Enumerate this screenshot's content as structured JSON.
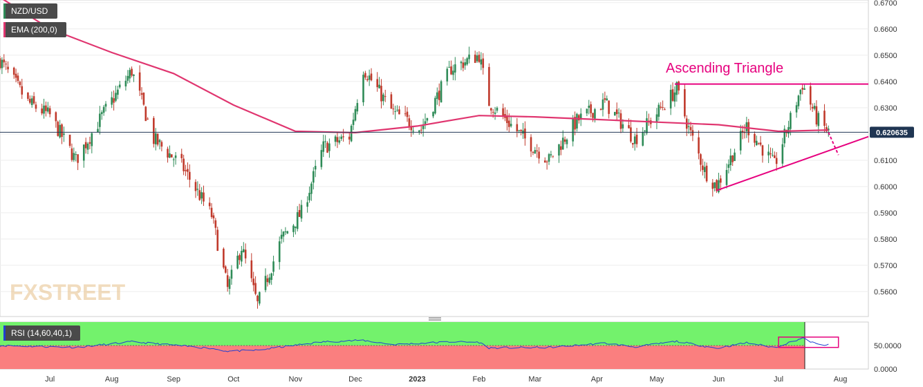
{
  "title": "NZD/USD",
  "legend": {
    "symbol": "NZD/USD",
    "ema": "EMA (200,0)",
    "rsi": "RSI (14,60,40,1)"
  },
  "annotation": "Ascending Triangle",
  "watermark": "FXSTREET",
  "current_price": "0.620635",
  "colors": {
    "up": "#2e8b57",
    "down": "#c0392b",
    "ema": "#e0356f",
    "pattern": "#e6007e",
    "rsi_line": "#1f3fd1",
    "rsi_upper_zone": "#73f26c",
    "rsi_lower_zone": "#fa7f7f",
    "price_label_bg": "#1f3552",
    "legend_bg": "#4a4a4a"
  },
  "chart_data": [
    {
      "type": "candlestick",
      "y_axis": {
        "ticks": [
          0.56,
          0.57,
          0.58,
          0.59,
          0.6,
          0.61,
          0.62,
          0.63,
          0.64,
          0.65,
          0.66,
          0.67
        ],
        "tick_labels": [
          "0.5600",
          "0.5700",
          "0.5800",
          "0.5900",
          "0.6000",
          "0.6100",
          "0.6200",
          "0.6300",
          "0.6400",
          "0.6500",
          "0.6600",
          "0.6700"
        ],
        "range": [
          0.5505,
          0.671
        ]
      },
      "x_axis": {
        "labels": [
          "Jul",
          "Aug",
          "Sep",
          "Oct",
          "Nov",
          "Dec",
          "2023",
          "Feb",
          "Mar",
          "Apr",
          "May",
          "Jun",
          "Jul",
          "Aug"
        ],
        "range": [
          "2022-06-06",
          "2023-08-15"
        ]
      },
      "price_path": [
        {
          "date": "2022-06-06",
          "close": 0.648
        },
        {
          "date": "2022-06-20",
          "close": 0.632
        },
        {
          "date": "2022-07-01",
          "close": 0.627
        },
        {
          "date": "2022-07-14",
          "close": 0.61
        },
        {
          "date": "2022-07-28",
          "close": 0.628
        },
        {
          "date": "2022-08-11",
          "close": 0.644
        },
        {
          "date": "2022-08-22",
          "close": 0.618
        },
        {
          "date": "2022-09-05",
          "close": 0.608
        },
        {
          "date": "2022-09-20",
          "close": 0.589
        },
        {
          "date": "2022-09-28",
          "close": 0.561
        },
        {
          "date": "2022-10-05",
          "close": 0.577
        },
        {
          "date": "2022-10-13",
          "close": 0.555
        },
        {
          "date": "2022-10-25",
          "close": 0.58
        },
        {
          "date": "2022-11-04",
          "close": 0.59
        },
        {
          "date": "2022-11-15",
          "close": 0.615
        },
        {
          "date": "2022-11-28",
          "close": 0.619
        },
        {
          "date": "2022-12-05",
          "close": 0.645
        },
        {
          "date": "2022-12-20",
          "close": 0.628
        },
        {
          "date": "2023-01-03",
          "close": 0.622
        },
        {
          "date": "2023-01-18",
          "close": 0.645
        },
        {
          "date": "2023-02-01",
          "close": 0.65
        },
        {
          "date": "2023-02-06",
          "close": 0.632
        },
        {
          "date": "2023-02-24",
          "close": 0.618
        },
        {
          "date": "2023-03-08",
          "close": 0.61
        },
        {
          "date": "2023-03-22",
          "close": 0.625
        },
        {
          "date": "2023-04-05",
          "close": 0.632
        },
        {
          "date": "2023-04-20",
          "close": 0.618
        },
        {
          "date": "2023-05-11",
          "close": 0.637
        },
        {
          "date": "2023-05-17",
          "close": 0.622
        },
        {
          "date": "2023-05-25",
          "close": 0.606
        },
        {
          "date": "2023-05-31",
          "close": 0.6
        },
        {
          "date": "2023-06-15",
          "close": 0.623
        },
        {
          "date": "2023-06-29",
          "close": 0.608
        },
        {
          "date": "2023-07-13",
          "close": 0.639
        },
        {
          "date": "2023-07-20",
          "close": 0.626
        },
        {
          "date": "2023-07-26",
          "close": 0.6206
        }
      ],
      "ema_200": [
        {
          "date": "2022-06-06",
          "value": 0.672
        },
        {
          "date": "2022-07-01",
          "value": 0.66
        },
        {
          "date": "2022-08-01",
          "value": 0.651
        },
        {
          "date": "2022-09-01",
          "value": 0.643
        },
        {
          "date": "2022-10-01",
          "value": 0.631
        },
        {
          "date": "2022-11-01",
          "value": 0.621
        },
        {
          "date": "2022-12-01",
          "value": 0.6205
        },
        {
          "date": "2023-01-01",
          "value": 0.623
        },
        {
          "date": "2023-02-01",
          "value": 0.627
        },
        {
          "date": "2023-03-01",
          "value": 0.6265
        },
        {
          "date": "2023-04-01",
          "value": 0.6255
        },
        {
          "date": "2023-05-01",
          "value": 0.6245
        },
        {
          "date": "2023-06-01",
          "value": 0.6235
        },
        {
          "date": "2023-07-01",
          "value": 0.621
        },
        {
          "date": "2023-07-26",
          "value": 0.6215
        }
      ],
      "pattern_lines": {
        "resistance": {
          "from": {
            "date": "2023-05-10",
            "price": 0.639
          },
          "to": {
            "date": "2023-08-15",
            "price": 0.639
          }
        },
        "support": {
          "from": {
            "date": "2023-05-31",
            "price": 0.5985
          },
          "to": {
            "date": "2023-08-15",
            "price": 0.619
          }
        },
        "projection": {
          "from": {
            "date": "2023-07-26",
            "price": 0.6206
          },
          "to": {
            "date": "2023-07-31",
            "price": 0.612
          }
        }
      },
      "current_price": 0.620635
    },
    {
      "type": "line",
      "y_axis": {
        "ticks": [
          50,
          0
        ],
        "tick_labels": [
          "50.0000",
          "0.0000"
        ],
        "range": [
          0,
          100
        ]
      },
      "levels": [
        50
      ],
      "rsi_path": [
        {
          "date": "2022-06-06",
          "value": 50
        },
        {
          "date": "2022-07-14",
          "value": 46
        },
        {
          "date": "2022-08-11",
          "value": 58
        },
        {
          "date": "2022-09-20",
          "value": 44
        },
        {
          "date": "2022-09-28",
          "value": 38
        },
        {
          "date": "2022-10-13",
          "value": 40
        },
        {
          "date": "2022-10-25",
          "value": 47
        },
        {
          "date": "2022-11-15",
          "value": 58
        },
        {
          "date": "2022-12-05",
          "value": 61
        },
        {
          "date": "2022-12-20",
          "value": 52
        },
        {
          "date": "2023-01-18",
          "value": 58
        },
        {
          "date": "2023-02-01",
          "value": 57
        },
        {
          "date": "2023-02-06",
          "value": 45
        },
        {
          "date": "2023-03-08",
          "value": 46
        },
        {
          "date": "2023-04-05",
          "value": 55
        },
        {
          "date": "2023-04-20",
          "value": 47
        },
        {
          "date": "2023-05-11",
          "value": 59
        },
        {
          "date": "2023-05-31",
          "value": 44
        },
        {
          "date": "2023-06-15",
          "value": 56
        },
        {
          "date": "2023-06-29",
          "value": 46
        },
        {
          "date": "2023-07-13",
          "value": 66
        },
        {
          "date": "2023-07-20",
          "value": 53
        },
        {
          "date": "2023-07-26",
          "value": 51
        }
      ],
      "highlight": {
        "from": "2023-07-01",
        "to": "2023-07-31",
        "value_range": [
          46,
          68
        ]
      }
    }
  ]
}
